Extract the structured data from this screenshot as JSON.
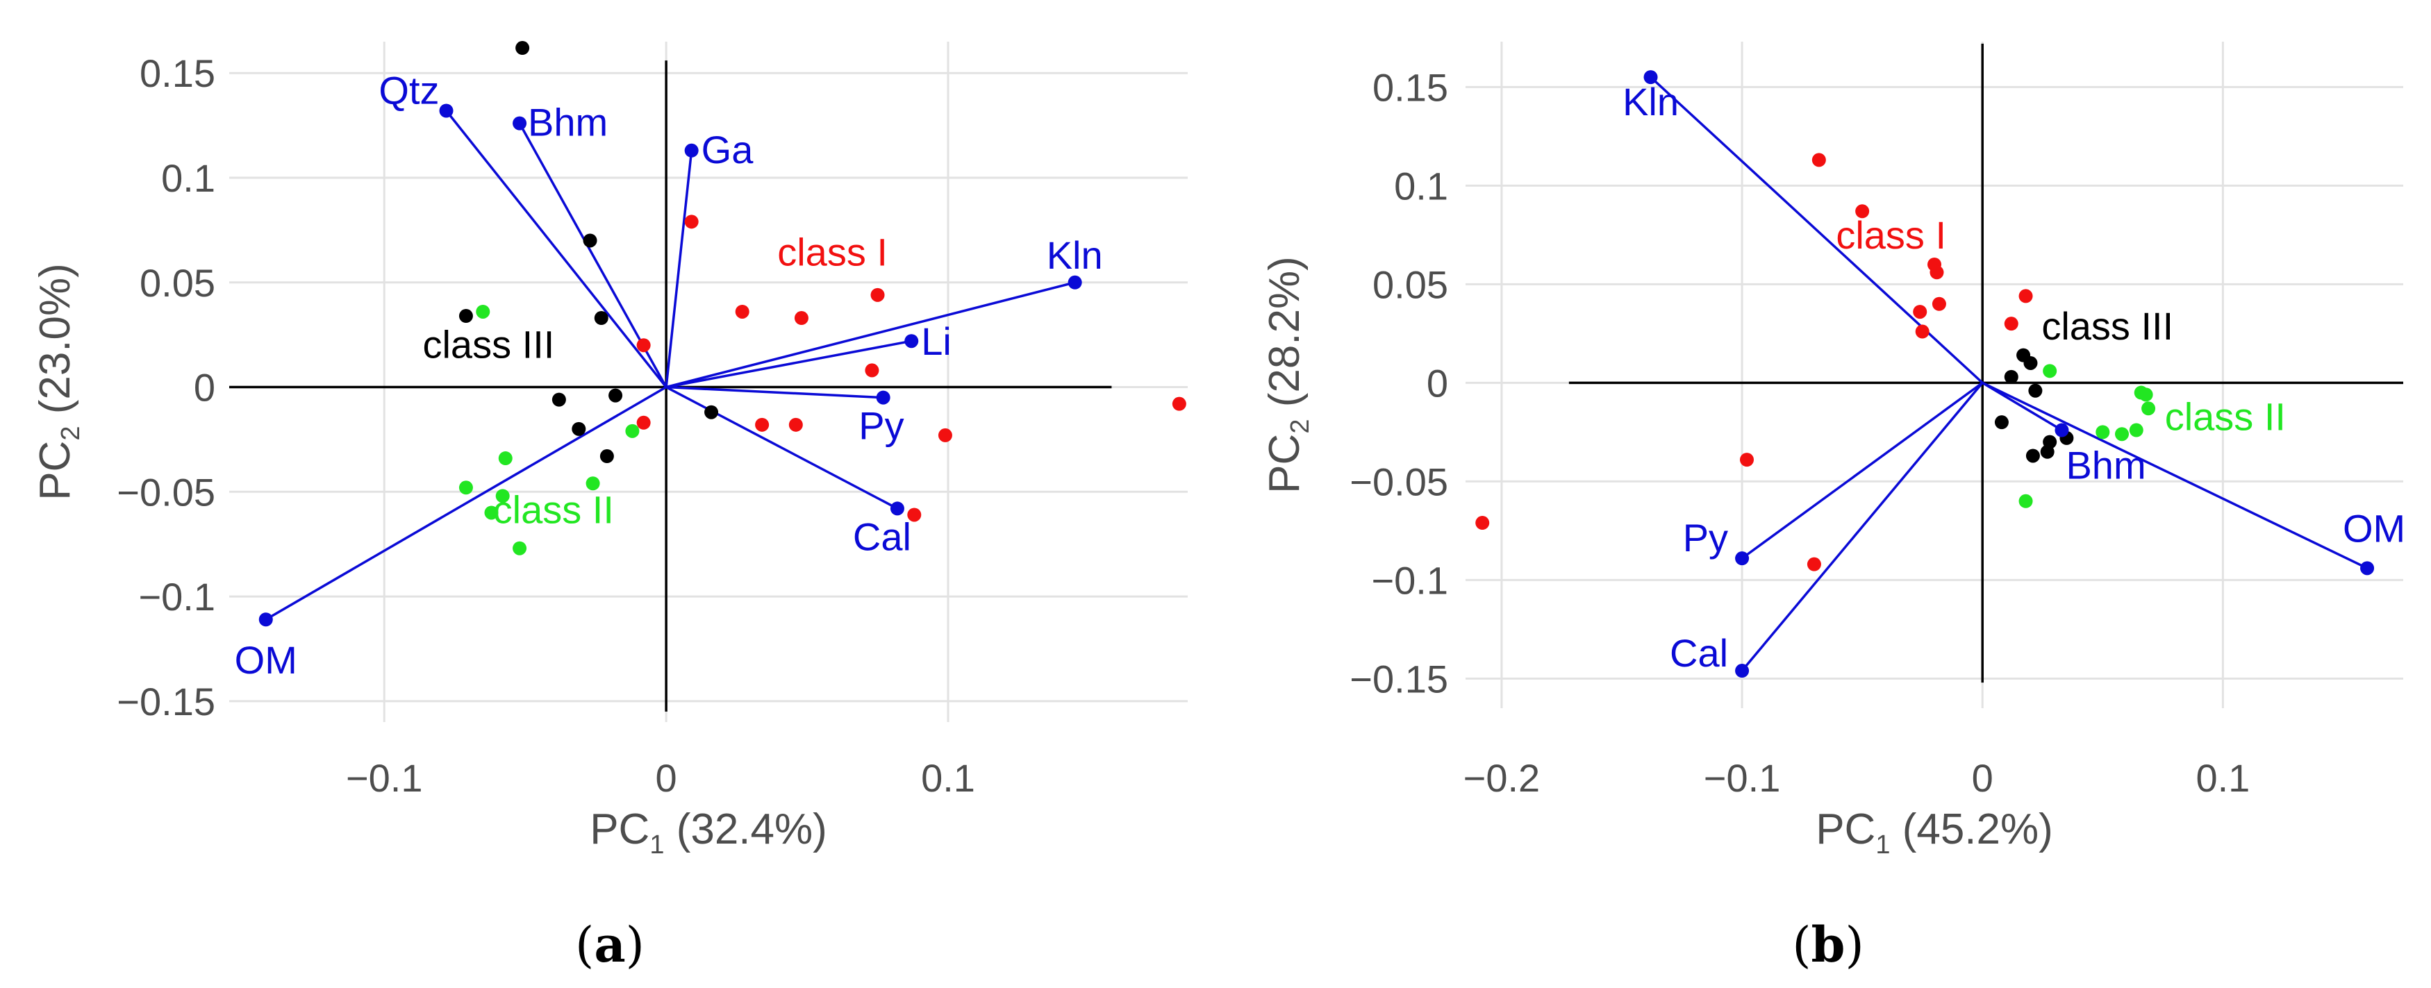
{
  "colors": {
    "vector": "#0a0ad6",
    "class_I": "#f21010",
    "class_II": "#22e622",
    "class_III": "#000000",
    "grid": "#e2e2e2",
    "axis_line": "#000000",
    "tick_text": "#4d4d4d"
  },
  "chart_data": [
    {
      "type": "scatter",
      "panel": "a",
      "caption": {
        "open": "(",
        "letter": "a",
        "close": ")"
      },
      "xlabel": {
        "base": "PC",
        "sub": "1",
        "rest": " (32.4%)"
      },
      "ylabel": {
        "base": "PC",
        "sub": "2",
        "rest": " (23.0%)"
      },
      "xlim": [
        -0.155,
        0.185
      ],
      "ylim": [
        -0.16,
        0.165
      ],
      "xticks": [
        -0.1,
        0,
        0.1
      ],
      "xtick_labels": [
        "−0.1",
        "0",
        "0.1"
      ],
      "yticks": [
        -0.15,
        -0.1,
        -0.05,
        0,
        0.05,
        0.1,
        0.15
      ],
      "ytick_labels": [
        "−0.15",
        "−0.1",
        "−0.05",
        "0",
        "0.05",
        "0.1",
        "0.15"
      ],
      "zero_line_x_extent": [
        -0.155,
        0.158
      ],
      "zero_line_y_extent": [
        -0.155,
        0.156
      ],
      "loadings": [
        {
          "name": "Qtz",
          "x": -0.078,
          "y": 0.132,
          "anchor": "end"
        },
        {
          "name": "Bhm",
          "x": -0.052,
          "y": 0.126,
          "anchor": "start"
        },
        {
          "name": "Ga",
          "x": 0.009,
          "y": 0.113,
          "anchor": "start"
        },
        {
          "name": "Kln",
          "x": 0.145,
          "y": 0.05,
          "anchor": "end"
        },
        {
          "name": "Li",
          "x": 0.087,
          "y": 0.022,
          "anchor": "start"
        },
        {
          "name": "Py",
          "x": 0.077,
          "y": -0.005,
          "anchor": "end"
        },
        {
          "name": "Cal",
          "x": 0.082,
          "y": -0.058,
          "anchor": "end"
        },
        {
          "name": "OM",
          "x": -0.142,
          "y": -0.111,
          "anchor": "middle"
        }
      ],
      "class_labels": [
        {
          "text": "class I",
          "x": 0.059,
          "y": 0.058,
          "class": "I"
        },
        {
          "text": "class II",
          "x": -0.04,
          "y": -0.065,
          "class": "II"
        },
        {
          "text": "class III",
          "x": -0.063,
          "y": 0.014,
          "class": "III"
        }
      ],
      "series": [
        {
          "name": "class I",
          "points": [
            [
              0.009,
              0.079
            ],
            [
              0.075,
              0.044
            ],
            [
              0.027,
              0.036
            ],
            [
              0.048,
              0.033
            ],
            [
              -0.008,
              0.02
            ],
            [
              0.073,
              0.008
            ],
            [
              -0.008,
              -0.017
            ],
            [
              0.034,
              -0.018
            ],
            [
              0.046,
              -0.018
            ],
            [
              0.099,
              -0.023
            ],
            [
              0.088,
              -0.061
            ],
            [
              0.182,
              -0.008
            ]
          ]
        },
        {
          "name": "class II",
          "points": [
            [
              -0.065,
              0.036
            ],
            [
              -0.057,
              -0.034
            ],
            [
              -0.012,
              -0.021
            ],
            [
              -0.071,
              -0.048
            ],
            [
              -0.058,
              -0.052
            ],
            [
              -0.026,
              -0.046
            ],
            [
              -0.062,
              -0.06
            ],
            [
              -0.052,
              -0.077
            ]
          ]
        },
        {
          "name": "class III",
          "points": [
            [
              -0.051,
              0.162
            ],
            [
              -0.027,
              0.07
            ],
            [
              -0.071,
              0.034
            ],
            [
              -0.023,
              0.033
            ],
            [
              -0.038,
              -0.006
            ],
            [
              -0.018,
              -0.004
            ],
            [
              -0.031,
              -0.02
            ],
            [
              -0.021,
              -0.033
            ],
            [
              0.016,
              -0.012
            ]
          ]
        }
      ]
    },
    {
      "type": "scatter",
      "panel": "b",
      "caption": {
        "open": "(",
        "letter": "b",
        "close": ")"
      },
      "xlabel": {
        "base": "PC",
        "sub": "1",
        "rest": " (45.2%)"
      },
      "ylabel": {
        "base": "PC",
        "sub": "2",
        "rest": " (28.2%)"
      },
      "xlim": [
        -0.215,
        0.175
      ],
      "ylim": [
        -0.165,
        0.173
      ],
      "xticks": [
        -0.2,
        -0.1,
        0,
        0.1
      ],
      "xtick_labels": [
        "−0.2",
        "−0.1",
        "0",
        "0.1"
      ],
      "yticks": [
        -0.15,
        -0.1,
        -0.05,
        0,
        0.05,
        0.1,
        0.15
      ],
      "ytick_labels": [
        "−0.15",
        "−0.1",
        "−0.05",
        "0",
        "0.05",
        "0.1",
        "0.15"
      ],
      "zero_line_x_extent": [
        -0.172,
        0.175
      ],
      "zero_line_y_extent": [
        -0.152,
        0.172
      ],
      "loadings": [
        {
          "name": "Kln",
          "x": -0.138,
          "y": 0.155,
          "anchor": "middle"
        },
        {
          "name": "Bhm",
          "x": 0.033,
          "y": -0.024,
          "anchor": "start"
        },
        {
          "name": "OM",
          "x": 0.16,
          "y": -0.094,
          "anchor": "middle"
        },
        {
          "name": "Py",
          "x": -0.1,
          "y": -0.089,
          "anchor": "end"
        },
        {
          "name": "Cal",
          "x": -0.1,
          "y": -0.146,
          "anchor": "end"
        }
      ],
      "class_labels": [
        {
          "text": "class I",
          "x": -0.038,
          "y": 0.068,
          "class": "I"
        },
        {
          "text": "class II",
          "x": 0.101,
          "y": -0.024,
          "class": "II"
        },
        {
          "text": "class III",
          "x": 0.052,
          "y": 0.022,
          "class": "III"
        }
      ],
      "series": [
        {
          "name": "class I",
          "points": [
            [
              -0.068,
              0.113
            ],
            [
              -0.05,
              0.087
            ],
            [
              -0.02,
              0.06
            ],
            [
              -0.019,
              0.056
            ],
            [
              -0.018,
              0.04
            ],
            [
              -0.026,
              0.036
            ],
            [
              -0.025,
              0.026
            ],
            [
              0.018,
              0.044
            ],
            [
              0.012,
              0.03
            ],
            [
              -0.098,
              -0.039
            ],
            [
              -0.07,
              -0.092
            ],
            [
              -0.208,
              -0.071
            ]
          ]
        },
        {
          "name": "class II",
          "points": [
            [
              0.028,
              0.006
            ],
            [
              0.066,
              -0.005
            ],
            [
              0.068,
              -0.006
            ],
            [
              0.069,
              -0.013
            ],
            [
              0.05,
              -0.025
            ],
            [
              0.058,
              -0.026
            ],
            [
              0.064,
              -0.024
            ],
            [
              0.018,
              -0.06
            ]
          ]
        },
        {
          "name": "class III",
          "points": [
            [
              0.017,
              0.014
            ],
            [
              0.02,
              0.01
            ],
            [
              0.012,
              0.003
            ],
            [
              0.022,
              -0.004
            ],
            [
              0.008,
              -0.02
            ],
            [
              0.028,
              -0.03
            ],
            [
              0.035,
              -0.028
            ],
            [
              0.027,
              -0.035
            ],
            [
              0.021,
              -0.037
            ]
          ]
        }
      ]
    }
  ]
}
